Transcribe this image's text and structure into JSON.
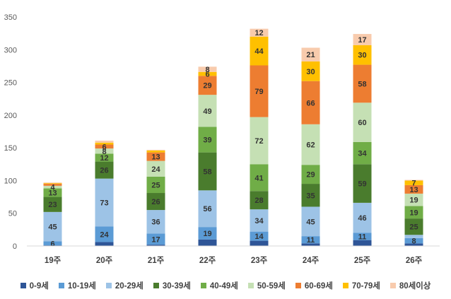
{
  "chart_data": {
    "type": "bar",
    "stacked": true,
    "categories": [
      "19주",
      "20주",
      "21주",
      "22주",
      "23주",
      "24주",
      "25주",
      "26주"
    ],
    "ylim": [
      0,
      350
    ],
    "yticks": [
      0,
      50,
      100,
      150,
      200,
      250,
      300,
      350
    ],
    "grid": false,
    "legend_position": "bottom",
    "series": [
      {
        "name": "0-9세",
        "color": "#2e5597",
        "values": [
          1,
          6,
          2,
          10,
          8,
          4,
          9,
          4
        ]
      },
      {
        "name": "10-19세",
        "color": "#5b9bd5",
        "values": [
          6,
          24,
          17,
          19,
          14,
          11,
          11,
          8
        ]
      },
      {
        "name": "20-29세",
        "color": "#9dc3e6",
        "values": [
          45,
          73,
          36,
          56,
          34,
          45,
          46,
          5
        ]
      },
      {
        "name": "30-39세",
        "color": "#4a7c2d",
        "values": [
          23,
          26,
          26,
          58,
          28,
          35,
          59,
          25
        ]
      },
      {
        "name": "40-49세",
        "color": "#70ad47",
        "values": [
          13,
          12,
          25,
          39,
          41,
          29,
          34,
          19
        ]
      },
      {
        "name": "50-59세",
        "color": "#c5e0b4",
        "values": [
          4,
          8,
          24,
          49,
          72,
          62,
          60,
          19
        ]
      },
      {
        "name": "60-69세",
        "color": "#ed7d31",
        "values": [
          3,
          6,
          13,
          29,
          79,
          66,
          58,
          13
        ]
      },
      {
        "name": "70-79세",
        "color": "#ffc000",
        "values": [
          1,
          3,
          3,
          6,
          44,
          30,
          30,
          7
        ]
      },
      {
        "name": "80세이상",
        "color": "#f8cbad",
        "values": [
          1,
          3,
          1,
          8,
          12,
          21,
          17,
          1
        ]
      }
    ],
    "data_labels": [
      [
        "",
        "",
        "",
        "",
        "",
        "",
        "",
        ""
      ],
      [
        "6",
        "24",
        "17",
        "19",
        "14",
        "11",
        "11",
        "8"
      ],
      [
        "45",
        "73",
        "36",
        "56",
        "34",
        "45",
        "46",
        ""
      ],
      [
        "23",
        "26",
        "26",
        "58",
        "28",
        "35",
        "59",
        "25"
      ],
      [
        "13",
        "12",
        "25",
        "39",
        "41",
        "29",
        "34",
        "19"
      ],
      [
        "4",
        "8",
        "24",
        "49",
        "72",
        "62",
        "60",
        "19"
      ],
      [
        "",
        "6",
        "13",
        "29",
        "79",
        "66",
        "58",
        "13"
      ],
      [
        "",
        "",
        "",
        "6",
        "44",
        "30",
        "30",
        "7"
      ],
      [
        "",
        "",
        "",
        "8",
        "12",
        "21",
        "17",
        ""
      ]
    ]
  }
}
